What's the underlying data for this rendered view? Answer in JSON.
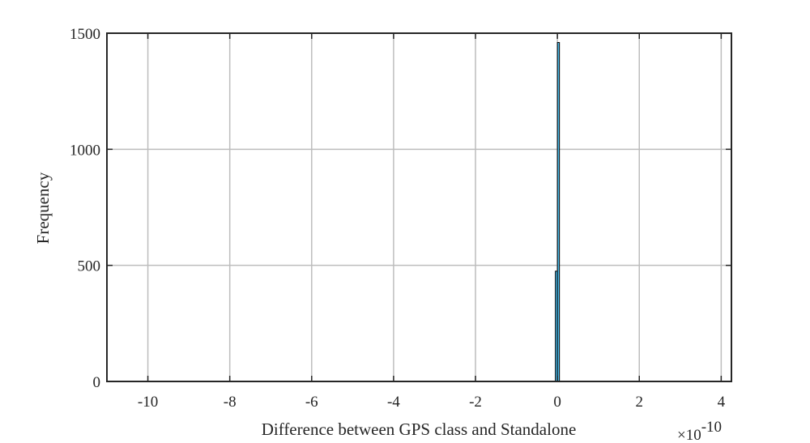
{
  "chart_data": {
    "type": "histogram",
    "title": "",
    "xlabel": "Difference between GPS class and Standalone",
    "ylabel": "Frequency",
    "x_exponent_label": {
      "base": "×10",
      "exponent": "-10"
    },
    "xlim": [
      -11,
      4.25
    ],
    "ylim": [
      0,
      1500
    ],
    "xticks": [
      -10,
      -8,
      -6,
      -4,
      -2,
      0,
      2,
      4
    ],
    "xtick_labels": [
      "-10",
      "-8",
      "-6",
      "-4",
      "-2",
      "0",
      "2",
      "4"
    ],
    "yticks": [
      0,
      500,
      1000,
      1500
    ],
    "ytick_labels": [
      "0",
      "500",
      "1000",
      "1500"
    ],
    "grid": true,
    "bins": [
      {
        "x_start": -0.05,
        "x_end": 0.0,
        "count": 475
      },
      {
        "x_start": 0.0,
        "x_end": 0.05,
        "count": 1460
      }
    ],
    "colors": {
      "bar_fill": "#4DBEEE",
      "bar_edge": "#000000",
      "grid": "#bdbdbd",
      "axes": "#262626"
    }
  }
}
